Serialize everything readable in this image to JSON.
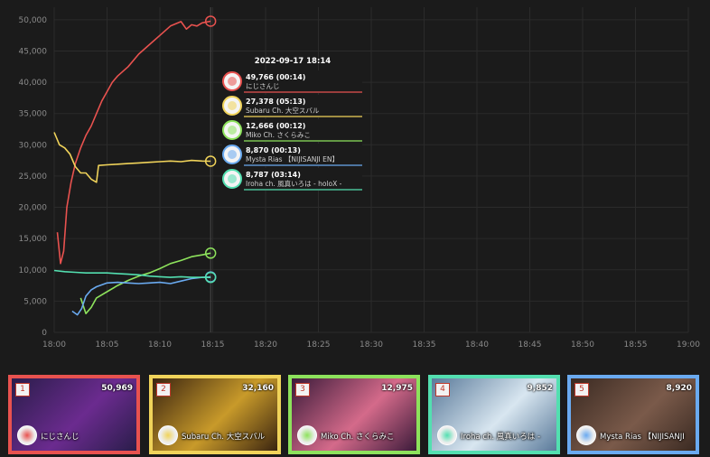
{
  "chart_data": {
    "type": "line",
    "ylim": [
      0,
      52000
    ],
    "yticks": [
      0,
      5000,
      10000,
      15000,
      20000,
      25000,
      30000,
      35000,
      40000,
      45000,
      50000
    ],
    "ytick_labels": [
      "0",
      "5,000",
      "10,000",
      "15,000",
      "20,000",
      "25,000",
      "30,000",
      "35,000",
      "40,000",
      "45,000",
      "50,000"
    ],
    "xlim_minutes": [
      0,
      60
    ],
    "xtick_labels": [
      "18:00",
      "18:05",
      "18:10",
      "18:15",
      "18:20",
      "18:25",
      "18:30",
      "18:35",
      "18:40",
      "18:45",
      "18:50",
      "18:55",
      "19:00"
    ],
    "grid": true,
    "hover_minute": 14.8,
    "tooltip": {
      "title": "2022-09-17 18:14",
      "entries": [
        {
          "value": "49,766 (00:14)",
          "name": "にじさんじ",
          "color": "#e8524f"
        },
        {
          "value": "27,378 (05:13)",
          "name": "Subaru Ch. 大空スバル",
          "color": "#f0d35a"
        },
        {
          "value": "12,666 (00:12)",
          "name": "Miko Ch. さくらみこ",
          "color": "#8de25c"
        },
        {
          "value": "8,870 (00:13)",
          "name": "Mysta Rias 【NIJISANJI EN】",
          "color": "#6aaaf0"
        },
        {
          "value": "8,787 (03:14)",
          "name": "Iroha ch. 風真いろは - holoX -",
          "color": "#53dfb0"
        }
      ]
    },
    "series": [
      {
        "color": "#e8524f",
        "points": [
          [
            0.3,
            16000
          ],
          [
            0.6,
            11000
          ],
          [
            0.9,
            13000
          ],
          [
            1.2,
            20000
          ],
          [
            1.6,
            24000
          ],
          [
            2.0,
            27000
          ],
          [
            2.5,
            29500
          ],
          [
            3.0,
            31500
          ],
          [
            3.5,
            33000
          ],
          [
            4,
            35000
          ],
          [
            4.5,
            37000
          ],
          [
            5,
            38500
          ],
          [
            5.5,
            40000
          ],
          [
            6,
            41000
          ],
          [
            7,
            42500
          ],
          [
            8,
            44500
          ],
          [
            9,
            46000
          ],
          [
            10,
            47500
          ],
          [
            11,
            49000
          ],
          [
            12,
            49700
          ],
          [
            12.5,
            48500
          ],
          [
            13,
            49200
          ],
          [
            13.5,
            49000
          ],
          [
            14,
            49500
          ],
          [
            14.8,
            49766
          ]
        ]
      },
      {
        "color": "#f0d35a",
        "points": [
          [
            0,
            32000
          ],
          [
            0.5,
            30000
          ],
          [
            1,
            29500
          ],
          [
            1.5,
            28500
          ],
          [
            2,
            26500
          ],
          [
            2.5,
            25500
          ],
          [
            3,
            25500
          ],
          [
            3.5,
            24500
          ],
          [
            4,
            24000
          ],
          [
            4.2,
            26700
          ],
          [
            5,
            26800
          ],
          [
            6,
            26900
          ],
          [
            7,
            27000
          ],
          [
            8,
            27100
          ],
          [
            9,
            27200
          ],
          [
            10,
            27300
          ],
          [
            11,
            27400
          ],
          [
            12,
            27300
          ],
          [
            13,
            27500
          ],
          [
            14,
            27400
          ],
          [
            14.8,
            27378
          ]
        ]
      },
      {
        "color": "#8de25c",
        "points": [
          [
            2.5,
            5500
          ],
          [
            3,
            3000
          ],
          [
            3.5,
            4000
          ],
          [
            4,
            5500
          ],
          [
            5,
            6500
          ],
          [
            6,
            7500
          ],
          [
            7,
            8300
          ],
          [
            8,
            9000
          ],
          [
            9,
            9500
          ],
          [
            10,
            10200
          ],
          [
            11,
            11000
          ],
          [
            12,
            11500
          ],
          [
            13,
            12100
          ],
          [
            14,
            12400
          ],
          [
            14.8,
            12666
          ]
        ]
      },
      {
        "color": "#6aaaf0",
        "points": [
          [
            1.7,
            3400
          ],
          [
            2.2,
            2800
          ],
          [
            2.6,
            3800
          ],
          [
            3,
            5800
          ],
          [
            3.5,
            6800
          ],
          [
            4,
            7300
          ],
          [
            5,
            7900
          ],
          [
            6,
            8000
          ],
          [
            7,
            7900
          ],
          [
            8,
            7800
          ],
          [
            9,
            7900
          ],
          [
            10,
            8000
          ],
          [
            11,
            7800
          ],
          [
            12,
            8200
          ],
          [
            13,
            8600
          ],
          [
            14,
            8800
          ],
          [
            14.8,
            8870
          ]
        ]
      },
      {
        "color": "#53dfb0",
        "points": [
          [
            0,
            9900
          ],
          [
            1,
            9700
          ],
          [
            2,
            9600
          ],
          [
            3,
            9500
          ],
          [
            4,
            9500
          ],
          [
            5,
            9500
          ],
          [
            6,
            9400
          ],
          [
            7,
            9300
          ],
          [
            8,
            9200
          ],
          [
            9,
            9000
          ],
          [
            10,
            8900
          ],
          [
            11,
            8800
          ],
          [
            12,
            8900
          ],
          [
            13,
            8800
          ],
          [
            14,
            8800
          ],
          [
            14.8,
            8787
          ]
        ]
      }
    ]
  },
  "cards": [
    {
      "rank": "1",
      "count": "50,969",
      "name": "にじさんじ",
      "border": "#e8524f",
      "bg": "#2a1d4a",
      "bg2": "#6b2b8f"
    },
    {
      "rank": "2",
      "count": "32,160",
      "name": "Subaru Ch. 大空スバル",
      "border": "#f0d35a",
      "bg": "#3a2410",
      "bg2": "#c89a2a"
    },
    {
      "rank": "3",
      "count": "12,975",
      "name": "Miko Ch. さくらみこ",
      "border": "#8de25c",
      "bg": "#3b1b3a",
      "bg2": "#d46a8a"
    },
    {
      "rank": "4",
      "count": "9,852",
      "name": "Iroha ch. 風真いろは -",
      "border": "#53dfb0",
      "bg": "#5a7a9a",
      "bg2": "#d8e6f0"
    },
    {
      "rank": "5",
      "count": "8,920",
      "name": "Mysta Rias 【NIJISANJI",
      "border": "#6aaaf0",
      "bg": "#3a2a22",
      "bg2": "#7a5a4a"
    }
  ]
}
